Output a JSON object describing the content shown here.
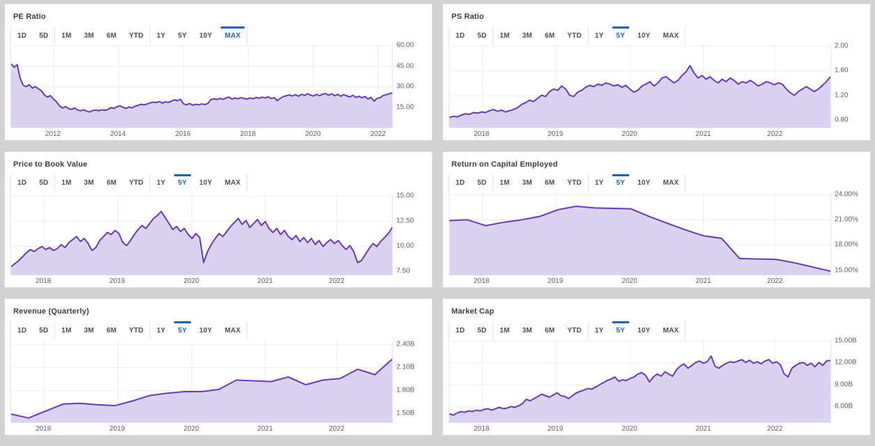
{
  "theme": {
    "page_background": "#d2d2d2",
    "card_background": "#ffffff",
    "line_color": "#6937be",
    "fill_color": "#dbd1f0",
    "active_tab_color": "#1565c0",
    "grid_color": "#ececec"
  },
  "range_groups": [
    [
      "1D",
      "5D"
    ],
    [
      "1M",
      "3M",
      "6M",
      "YTD"
    ],
    [
      "1Y",
      "5Y",
      "10Y",
      "MAX"
    ]
  ],
  "chart_data": [
    {
      "id": "pe-ratio",
      "type": "area",
      "title": "PE Ratio",
      "active_range": "MAX",
      "legend": "none",
      "grid": true,
      "y_range": [
        0,
        60.5
      ],
      "y_ticks": [
        {
          "label": "15.00",
          "value": 15
        },
        {
          "label": "30.00",
          "value": 30
        },
        {
          "label": "45.00",
          "value": 45
        },
        {
          "label": "60.00",
          "value": 60
        }
      ],
      "x_ticks": [
        {
          "label": "2012",
          "pos": 0.111
        },
        {
          "label": "2014",
          "pos": 0.281
        },
        {
          "label": "2016",
          "pos": 0.451
        },
        {
          "label": "2018",
          "pos": 0.621
        },
        {
          "label": "2020",
          "pos": 0.791
        },
        {
          "label": "2022",
          "pos": 0.961
        }
      ],
      "values": [
        46.5,
        44,
        46,
        36,
        31,
        30,
        31.5,
        29,
        30,
        28.5,
        27,
        24,
        22.5,
        23.5,
        21,
        19,
        16,
        14.5,
        15.5,
        14,
        13.5,
        14.5,
        13,
        12.5,
        13.2,
        12.2,
        11.6,
        12.8,
        13,
        12.6,
        13.2,
        12.8,
        13.4,
        14.8,
        14.2,
        15.5,
        16,
        15,
        14.3,
        15.2,
        14.6,
        15.8,
        16.5,
        17.2,
        16.8,
        17.5,
        18.2,
        18.8,
        18.4,
        19.2,
        18,
        19,
        18.5,
        19.5,
        20.5,
        19.8,
        20.8,
        17.5,
        16.8,
        17.8,
        16.5,
        17.2,
        16.8,
        17.5,
        17,
        17.8,
        20.5,
        21.2,
        20.6,
        21.5,
        20.8,
        21.8,
        22.5,
        21,
        21.8,
        21.2,
        22,
        21.4,
        21,
        21.8,
        21.2,
        22.2,
        21.6,
        22.4,
        21.8,
        22.6,
        21.4,
        22,
        19.8,
        21.5,
        22.8,
        23.4,
        24,
        23.2,
        24.2,
        23,
        24.5,
        23.6,
        24.8,
        23.8,
        23.2,
        24.4,
        23.4,
        24.6,
        25,
        23.8,
        24.8,
        23.4,
        24.4,
        23,
        24.2,
        23.2,
        22.6,
        23.8,
        22.2,
        23,
        22,
        22.8,
        21,
        22.2,
        19.5,
        21.5,
        22,
        23.5,
        24.2,
        24.8,
        25.5
      ]
    },
    {
      "id": "ps-ratio",
      "type": "area",
      "title": "PS Ratio",
      "active_range": "5Y",
      "legend": "none",
      "grid": true,
      "y_range": [
        0.67,
        2.02
      ],
      "y_ticks": [
        {
          "label": "0.80",
          "value": 0.8
        },
        {
          "label": "1.20",
          "value": 1.2
        },
        {
          "label": "1.60",
          "value": 1.6
        },
        {
          "label": "2.00",
          "value": 2.0
        }
      ],
      "x_ticks": [
        {
          "label": "2018",
          "pos": 0.086
        },
        {
          "label": "2019",
          "pos": 0.279
        },
        {
          "label": "2020",
          "pos": 0.473
        },
        {
          "label": "2021",
          "pos": 0.666
        },
        {
          "label": "2022",
          "pos": 0.853
        }
      ],
      "values": [
        0.84,
        0.86,
        0.85,
        0.88,
        0.9,
        0.89,
        0.92,
        0.91,
        0.93,
        0.92,
        0.95,
        0.97,
        0.94,
        0.96,
        0.93,
        0.95,
        0.97,
        1.0,
        1.05,
        1.08,
        1.12,
        1.1,
        1.15,
        1.2,
        1.18,
        1.26,
        1.3,
        1.28,
        1.35,
        1.3,
        1.2,
        1.18,
        1.25,
        1.28,
        1.33,
        1.36,
        1.34,
        1.38,
        1.36,
        1.4,
        1.38,
        1.35,
        1.37,
        1.33,
        1.36,
        1.3,
        1.25,
        1.28,
        1.35,
        1.38,
        1.42,
        1.35,
        1.4,
        1.48,
        1.5,
        1.45,
        1.4,
        1.44,
        1.52,
        1.58,
        1.68,
        1.56,
        1.48,
        1.52,
        1.46,
        1.5,
        1.44,
        1.4,
        1.46,
        1.42,
        1.48,
        1.44,
        1.38,
        1.42,
        1.4,
        1.44,
        1.4,
        1.35,
        1.38,
        1.42,
        1.4,
        1.37,
        1.4,
        1.38,
        1.3,
        1.24,
        1.2,
        1.26,
        1.3,
        1.34,
        1.3,
        1.26,
        1.3,
        1.36,
        1.42,
        1.5
      ]
    },
    {
      "id": "price-to-book",
      "type": "area",
      "title": "Price to Book Value",
      "active_range": "5Y",
      "legend": "none",
      "grid": true,
      "y_range": [
        7.09,
        15.4
      ],
      "y_ticks": [
        {
          "label": "7.50",
          "value": 7.5
        },
        {
          "label": "10.00",
          "value": 10.0
        },
        {
          "label": "12.50",
          "value": 12.5
        },
        {
          "label": "15.00",
          "value": 15.0
        }
      ],
      "x_ticks": [
        {
          "label": "2018",
          "pos": 0.086
        },
        {
          "label": "2019",
          "pos": 0.279
        },
        {
          "label": "2020",
          "pos": 0.473
        },
        {
          "label": "2021",
          "pos": 0.666
        },
        {
          "label": "2022",
          "pos": 0.853
        }
      ],
      "values": [
        8.0,
        8.3,
        8.6,
        9.0,
        9.4,
        9.7,
        9.5,
        9.8,
        10.0,
        9.7,
        9.9,
        9.6,
        9.8,
        10.2,
        9.9,
        10.4,
        10.7,
        11.0,
        10.5,
        10.8,
        10.3,
        9.6,
        9.9,
        10.6,
        11.0,
        11.4,
        11.2,
        11.6,
        11.3,
        10.4,
        10.1,
        10.6,
        11.2,
        11.7,
        12.1,
        11.8,
        12.3,
        12.8,
        13.1,
        13.5,
        12.9,
        12.3,
        11.7,
        12.0,
        11.5,
        11.8,
        11.2,
        10.8,
        11.3,
        10.9,
        8.4,
        9.5,
        10.2,
        10.8,
        11.3,
        11.0,
        11.5,
        12.0,
        12.4,
        12.8,
        12.2,
        12.6,
        11.9,
        12.3,
        12.7,
        12.1,
        12.5,
        11.8,
        11.4,
        11.8,
        11.2,
        11.6,
        11.0,
        10.7,
        11.1,
        10.5,
        10.9,
        10.4,
        10.8,
        10.2,
        10.6,
        10.0,
        10.4,
        10.7,
        10.3,
        10.6,
        10.1,
        9.7,
        10.1,
        9.5,
        8.4,
        8.6,
        9.2,
        9.8,
        10.3,
        10.0,
        10.5,
        10.9,
        11.3,
        11.9
      ]
    },
    {
      "id": "return-on-capital-employed",
      "type": "area",
      "title": "Return on Capital Employed",
      "active_range": "5Y",
      "legend": "none",
      "grid": true,
      "y_range": [
        14.36,
        24.25
      ],
      "y_ticks": [
        {
          "label": "15.00%",
          "value": 15
        },
        {
          "label": "18.00%",
          "value": 18
        },
        {
          "label": "21.00%",
          "value": 21
        },
        {
          "label": "24.00%",
          "value": 24
        }
      ],
      "x_ticks": [
        {
          "label": "2018",
          "pos": 0.086
        },
        {
          "label": "2019",
          "pos": 0.279
        },
        {
          "label": "2020",
          "pos": 0.473
        },
        {
          "label": "2021",
          "pos": 0.666
        },
        {
          "label": "2022",
          "pos": 0.853
        }
      ],
      "values": [
        20.9,
        21.0,
        20.3,
        20.7,
        21.0,
        21.4,
        22.2,
        22.6,
        22.4,
        22.35,
        22.3,
        21.4,
        20.6,
        19.8,
        19.1,
        18.8,
        16.4,
        16.35,
        16.3,
        15.9,
        15.4,
        14.9
      ]
    },
    {
      "id": "revenue-quarterly",
      "type": "area",
      "title": "Revenue (Quarterly)",
      "active_range": "5Y",
      "legend": "none",
      "grid": true,
      "y_range": [
        1.378,
        2.456
      ],
      "y_ticks": [
        {
          "label": "1.50B",
          "value": 1.5
        },
        {
          "label": "1.80B",
          "value": 1.8
        },
        {
          "label": "2.10B",
          "value": 2.1
        },
        {
          "label": "2.40B",
          "value": 2.4
        }
      ],
      "x_ticks": [
        {
          "label": "2018",
          "pos": 0.086
        },
        {
          "label": "2019",
          "pos": 0.279
        },
        {
          "label": "2020",
          "pos": 0.473
        },
        {
          "label": "2021",
          "pos": 0.666
        },
        {
          "label": "2022",
          "pos": 0.853
        }
      ],
      "values": [
        1.49,
        1.44,
        1.53,
        1.62,
        1.63,
        1.61,
        1.6,
        1.66,
        1.73,
        1.76,
        1.78,
        1.78,
        1.81,
        1.93,
        1.92,
        1.91,
        1.97,
        1.87,
        1.93,
        1.95,
        2.07,
        2.0,
        2.2
      ]
    },
    {
      "id": "market-cap",
      "type": "area",
      "title": "Market Cap",
      "active_range": "5Y",
      "legend": "none",
      "grid": true,
      "y_range": [
        3.65,
        15.2
      ],
      "y_ticks": [
        {
          "label": "6.00B",
          "value": 6
        },
        {
          "label": "9.00B",
          "value": 9
        },
        {
          "label": "12.00B",
          "value": 12
        },
        {
          "label": "15.00B",
          "value": 15
        }
      ],
      "x_ticks": [
        {
          "label": "2018",
          "pos": 0.086
        },
        {
          "label": "2019",
          "pos": 0.279
        },
        {
          "label": "2020",
          "pos": 0.473
        },
        {
          "label": "2021",
          "pos": 0.666
        },
        {
          "label": "2022",
          "pos": 0.853
        }
      ],
      "values": [
        4.9,
        4.7,
        5.0,
        5.2,
        5.1,
        5.3,
        5.2,
        5.4,
        5.3,
        5.5,
        5.6,
        5.4,
        5.6,
        5.8,
        5.6,
        5.7,
        5.9,
        5.8,
        6.0,
        6.3,
        6.9,
        6.7,
        7.0,
        7.3,
        7.6,
        7.4,
        7.2,
        7.5,
        7.8,
        7.4,
        7.3,
        7.0,
        7.4,
        7.8,
        8.0,
        8.2,
        8.4,
        8.3,
        8.6,
        8.9,
        9.2,
        9.5,
        9.7,
        10.0,
        9.4,
        9.6,
        9.5,
        9.8,
        10.0,
        10.4,
        10.6,
        10.2,
        9.3,
        10.0,
        10.4,
        10.1,
        10.7,
        10.4,
        10.1,
        11.0,
        11.5,
        11.8,
        11.2,
        11.6,
        12.0,
        12.2,
        11.9,
        12.1,
        12.9,
        11.5,
        11.2,
        11.6,
        11.9,
        12.1,
        12.0,
        12.2,
        12.4,
        12.0,
        12.3,
        11.9,
        12.1,
        11.8,
        12.2,
        12.4,
        11.9,
        12.1,
        11.7,
        10.4,
        10.0,
        11.2,
        11.6,
        11.9,
        12.0,
        11.6,
        11.9,
        11.4,
        12.0,
        11.6,
        12.2,
        12.3
      ]
    }
  ]
}
